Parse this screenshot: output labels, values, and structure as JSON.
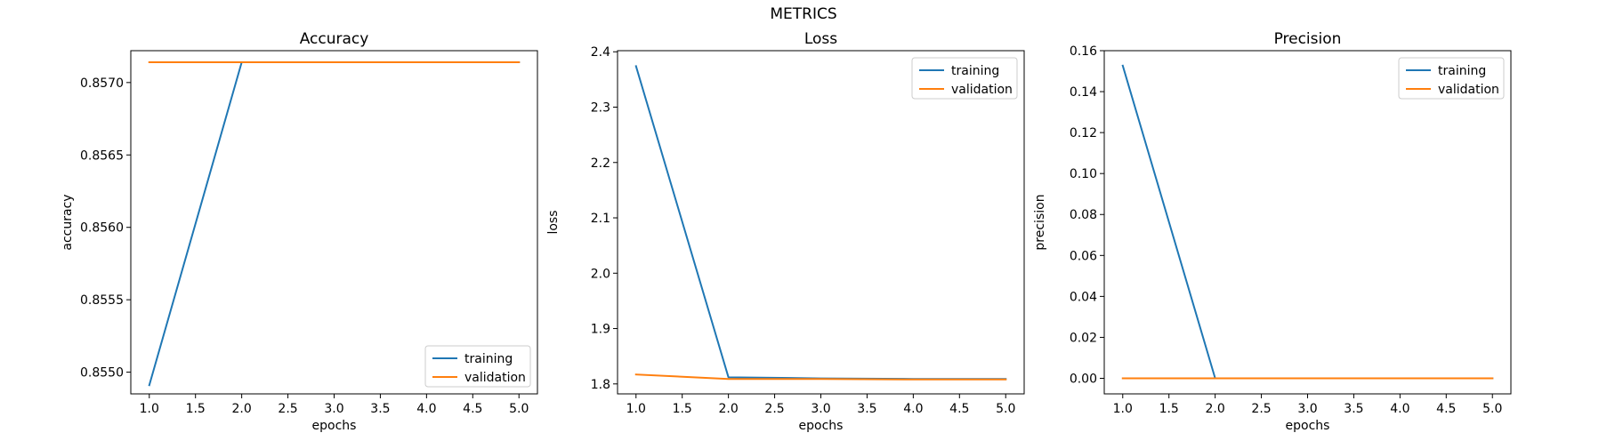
{
  "suptitle": "METRICS",
  "colors": {
    "training": "#1f77b4",
    "validation": "#ff7f0e"
  },
  "chart_data": [
    {
      "type": "line",
      "title": "Accuracy",
      "xlabel": "epochs",
      "ylabel": "accuracy",
      "x": [
        1,
        2,
        3,
        4,
        5
      ],
      "xlim": [
        0.8,
        5.2
      ],
      "ylim": [
        0.85485,
        0.85722
      ],
      "xticks": [
        1.0,
        1.5,
        2.0,
        2.5,
        3.0,
        3.5,
        4.0,
        4.5,
        5.0
      ],
      "xtick_labels": [
        "1.0",
        "1.5",
        "2.0",
        "2.5",
        "3.0",
        "3.5",
        "4.0",
        "4.5",
        "5.0"
      ],
      "yticks": [
        0.855,
        0.8555,
        0.856,
        0.8565,
        0.857
      ],
      "ytick_labels": [
        "0.8550",
        "0.8555",
        "0.8560",
        "0.8565",
        "0.8570"
      ],
      "legend_position": "lower-right",
      "grid": false,
      "series": [
        {
          "name": "training",
          "values": [
            0.85491,
            0.85714,
            0.85714,
            0.85714,
            0.85714
          ]
        },
        {
          "name": "validation",
          "values": [
            0.85714,
            0.85714,
            0.85714,
            0.85714,
            0.85714
          ]
        }
      ]
    },
    {
      "type": "line",
      "title": "Loss",
      "xlabel": "epochs",
      "ylabel": "loss",
      "x": [
        1,
        2,
        3,
        4,
        5
      ],
      "xlim": [
        0.8,
        5.2
      ],
      "ylim": [
        1.782,
        2.402
      ],
      "xticks": [
        1.0,
        1.5,
        2.0,
        2.5,
        3.0,
        3.5,
        4.0,
        4.5,
        5.0
      ],
      "xtick_labels": [
        "1.0",
        "1.5",
        "2.0",
        "2.5",
        "3.0",
        "3.5",
        "4.0",
        "4.5",
        "5.0"
      ],
      "yticks": [
        1.8,
        1.9,
        2.0,
        2.1,
        2.2,
        2.3,
        2.4
      ],
      "ytick_labels": [
        "1.8",
        "1.9",
        "2.0",
        "2.1",
        "2.2",
        "2.3",
        "2.4"
      ],
      "legend_position": "upper-right",
      "grid": false,
      "series": [
        {
          "name": "training",
          "values": [
            2.374,
            1.812,
            1.81,
            1.809,
            1.809
          ]
        },
        {
          "name": "validation",
          "values": [
            1.817,
            1.809,
            1.809,
            1.808,
            1.808
          ]
        }
      ]
    },
    {
      "type": "line",
      "title": "Precision",
      "xlabel": "epochs",
      "ylabel": "precision",
      "x": [
        1,
        2,
        3,
        4,
        5
      ],
      "xlim": [
        0.8,
        5.2
      ],
      "ylim": [
        -0.0076,
        0.16
      ],
      "xticks": [
        1.0,
        1.5,
        2.0,
        2.5,
        3.0,
        3.5,
        4.0,
        4.5,
        5.0
      ],
      "xtick_labels": [
        "1.0",
        "1.5",
        "2.0",
        "2.5",
        "3.0",
        "3.5",
        "4.0",
        "4.5",
        "5.0"
      ],
      "yticks": [
        0.0,
        0.02,
        0.04,
        0.06,
        0.08,
        0.1,
        0.12,
        0.14,
        0.16
      ],
      "ytick_labels": [
        "0.00",
        "0.02",
        "0.04",
        "0.06",
        "0.08",
        "0.10",
        "0.12",
        "0.14",
        "0.16"
      ],
      "legend_position": "upper-right",
      "grid": false,
      "series": [
        {
          "name": "training",
          "values": [
            0.1527,
            0.0,
            0.0,
            0.0,
            0.0
          ]
        },
        {
          "name": "validation",
          "values": [
            0.0,
            0.0,
            0.0,
            0.0,
            0.0
          ]
        }
      ]
    }
  ]
}
